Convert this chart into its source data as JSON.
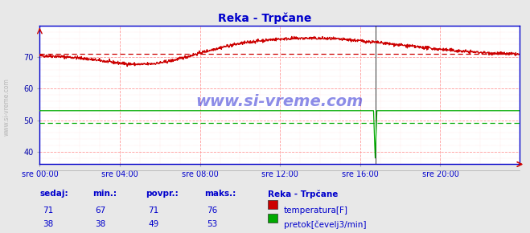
{
  "title": "Reka - Trpčane",
  "title_color": "#0000cc",
  "bg_color": "#e8e8e8",
  "plot_bg_color": "#ffffff",
  "grid_color_major": "#ff9999",
  "grid_color_minor": "#ffdddd",
  "x_label_color": "#0000cc",
  "y_label_color": "#0000aa",
  "watermark_text": "www.si-vreme.com",
  "watermark_color": "#0000cc",
  "x_ticks": [
    0,
    240,
    480,
    720,
    960,
    1200
  ],
  "x_tick_labels": [
    "sre 00:00",
    "sre 04:00",
    "sre 08:00",
    "sre 12:00",
    "sre 16:00",
    "sre 20:00"
  ],
  "x_max": 1437,
  "y_min": 36,
  "y_max": 80,
  "y_ticks": [
    40,
    50,
    60,
    70
  ],
  "temp_avg": 71,
  "flow_avg": 49,
  "temp_color": "#cc0000",
  "flow_color": "#00aa00",
  "current_line_x": 1005,
  "legend_title": "Reka - Trpčane",
  "legend_items": [
    {
      "label": "temperatura[F]",
      "color": "#cc0000"
    },
    {
      "label": "pretok[čevelj3/min]",
      "color": "#00aa00"
    }
  ],
  "table_headers": [
    "sedaj:",
    "min.:",
    "povpr.:",
    "maks.:"
  ],
  "table_row1": [
    71,
    67,
    71,
    76
  ],
  "table_row2": [
    38,
    38,
    49,
    53
  ],
  "table_color": "#0000cc",
  "side_watermark": "www.si-vreme.com"
}
